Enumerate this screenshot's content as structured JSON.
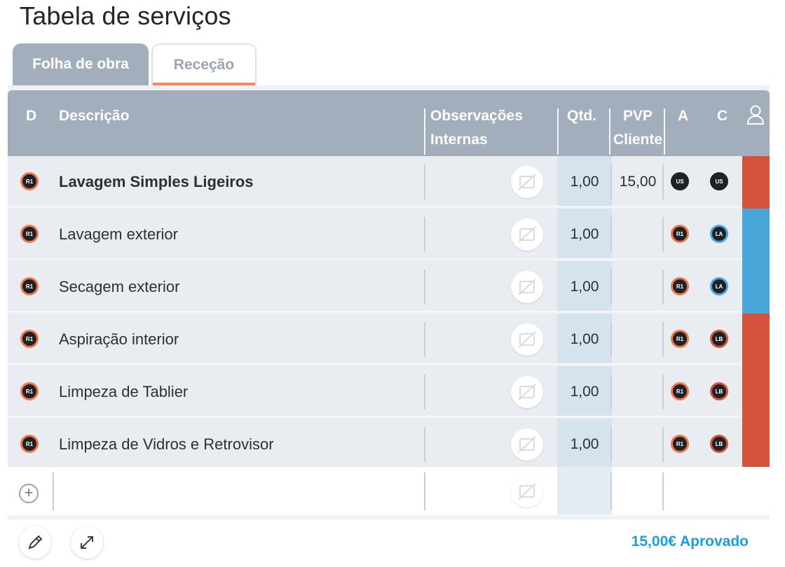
{
  "page": {
    "title": "Tabela de serviços"
  },
  "tabs": [
    {
      "label": "Folha de obra",
      "active": true
    },
    {
      "label": "Receção",
      "active": false
    }
  ],
  "table": {
    "headers": {
      "d": "D",
      "descricao": "Descrição",
      "obs_line1": "Observações",
      "obs_line2": "Internas",
      "qtd": "Qtd.",
      "pvp_line1": "PVP",
      "pvp_line2": "Cliente",
      "a": "A",
      "c": "C",
      "user_icon": "user-icon"
    },
    "rows": [
      {
        "d": "R1",
        "descricao": "Lavagem Simples Ligeiros",
        "qtd": "1,00",
        "pvp": "15,00",
        "a": "US",
        "c": "US",
        "a_ring": "#1e2126",
        "c_ring": "#1e2126",
        "status_color": "#d4533a",
        "bold": true
      },
      {
        "d": "R1",
        "descricao": "Lavagem exterior",
        "qtd": "1,00",
        "pvp": "",
        "a": "R1",
        "c": "LA",
        "a_ring": "#f0774a",
        "c_ring": "#4aa6d8",
        "status_color": "#4aa6d8",
        "bold": false
      },
      {
        "d": "R1",
        "descricao": "Secagem exterior",
        "qtd": "1,00",
        "pvp": "",
        "a": "R1",
        "c": "LA",
        "a_ring": "#f0774a",
        "c_ring": "#4aa6d8",
        "status_color": "#4aa6d8",
        "bold": false
      },
      {
        "d": "R1",
        "descricao": "Aspiração interior",
        "qtd": "1,00",
        "pvp": "",
        "a": "R1",
        "c": "LB",
        "a_ring": "#f0774a",
        "c_ring": "#d4533a",
        "status_color": "#d4533a",
        "bold": false
      },
      {
        "d": "R1",
        "descricao": "Limpeza de Tablier",
        "qtd": "1,00",
        "pvp": "",
        "a": "R1",
        "c": "LB",
        "a_ring": "#f0774a",
        "c_ring": "#d4533a",
        "status_color": "#d4533a",
        "bold": false
      },
      {
        "d": "R1",
        "descricao": "Limpeza de Vidros e Retrovisor",
        "qtd": "1,00",
        "pvp": "",
        "a": "R1",
        "c": "LB",
        "a_ring": "#f0774a",
        "c_ring": "#d4533a",
        "status_color": "#d4533a",
        "bold": false
      }
    ],
    "add_row_icon": "plus-icon"
  },
  "footer": {
    "edit_icon": "pencil-icon",
    "expand_icon": "expand-icon",
    "total": "15,00€ Aprovado"
  },
  "colors": {
    "header_bg": "#a3aebd",
    "accent_orange": "#f0774a",
    "accent_blue": "#4aa6d8",
    "status_red": "#d4533a",
    "total_blue": "#1a9ee0"
  }
}
